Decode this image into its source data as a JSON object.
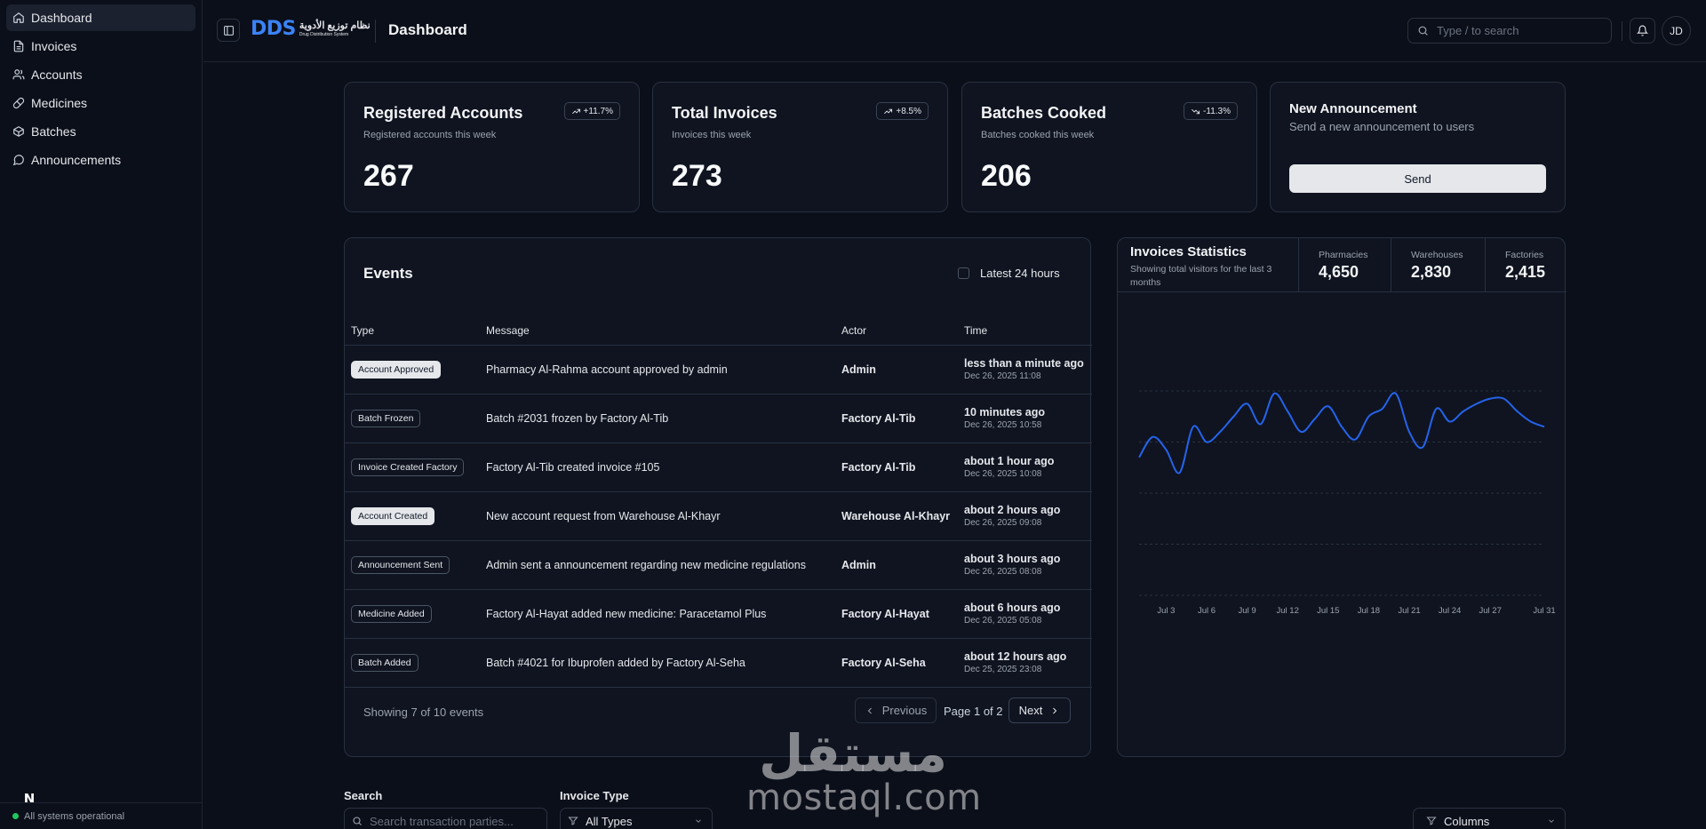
{
  "sidebar": {
    "items": [
      {
        "label": "Dashboard",
        "icon": "home-icon"
      },
      {
        "label": "Invoices",
        "icon": "file-icon"
      },
      {
        "label": "Accounts",
        "icon": "users-icon"
      },
      {
        "label": "Medicines",
        "icon": "pill-icon"
      },
      {
        "label": "Batches",
        "icon": "package-icon"
      },
      {
        "label": "Announcements",
        "icon": "message-icon"
      }
    ],
    "status": "All systems operational"
  },
  "header": {
    "brand": "DDS",
    "brand_ar": "نظام توزيع الأدوية",
    "brand_en": "Drug Distribution System",
    "title": "Dashboard",
    "search_placeholder": "Type / to search",
    "avatar": "JD"
  },
  "stats": [
    {
      "title": "Registered Accounts",
      "subtitle": "Registered accounts this week",
      "value": "267",
      "trend": "+11.7%",
      "trend_dir": "up"
    },
    {
      "title": "Total Invoices",
      "subtitle": "Invoices this week",
      "value": "273",
      "trend": "+8.5%",
      "trend_dir": "up"
    },
    {
      "title": "Batches Cooked",
      "subtitle": "Batches cooked this week",
      "value": "206",
      "trend": "-11.3%",
      "trend_dir": "down"
    }
  ],
  "announcement": {
    "title": "New Announcement",
    "subtitle": "Send a new announcement to users",
    "button": "Send"
  },
  "events": {
    "title": "Events",
    "filter_label": "Latest 24 hours",
    "columns": [
      "Type",
      "Message",
      "Actor",
      "Time"
    ],
    "rows": [
      {
        "type": "Account Approved",
        "style": "light",
        "message": "Pharmacy Al-Rahma account approved by admin",
        "actor": "Admin",
        "time": "less than a minute ago",
        "date": "Dec 26, 2025 11:08"
      },
      {
        "type": "Batch Frozen",
        "style": "outline",
        "message": "Batch #2031 frozen by Factory Al-Tib",
        "actor": "Factory Al-Tib",
        "time": "10 minutes ago",
        "date": "Dec 26, 2025 10:58"
      },
      {
        "type": "Invoice Created Factory",
        "style": "outline",
        "message": "Factory Al-Tib created invoice #105",
        "actor": "Factory Al-Tib",
        "time": "about 1 hour ago",
        "date": "Dec 26, 2025 10:08"
      },
      {
        "type": "Account Created",
        "style": "light",
        "message": "New account request from Warehouse Al-Khayr",
        "actor": "Warehouse Al-Khayr",
        "time": "about 2 hours ago",
        "date": "Dec 26, 2025 09:08"
      },
      {
        "type": "Announcement Sent",
        "style": "outline",
        "message": "Admin sent a announcement regarding new medicine regulations",
        "actor": "Admin",
        "time": "about 3 hours ago",
        "date": "Dec 26, 2025 08:08"
      },
      {
        "type": "Medicine Added",
        "style": "outline",
        "message": "Factory Al-Hayat added new medicine: Paracetamol Plus",
        "actor": "Factory Al-Hayat",
        "time": "about 6 hours ago",
        "date": "Dec 26, 2025 05:08"
      },
      {
        "type": "Batch Added",
        "style": "outline",
        "message": "Batch #4021 for Ibuprofen added by Factory Al-Seha",
        "actor": "Factory Al-Seha",
        "time": "about 12 hours ago",
        "date": "Dec 25, 2025 23:08"
      }
    ],
    "showing": "Showing 7 of 10 events",
    "prev": "Previous",
    "page": "Page 1 of 2",
    "next": "Next"
  },
  "invoice_stats": {
    "title": "Invoices Statistics",
    "subtitle": "Showing total visitors for the last 3 months",
    "columns": [
      {
        "label": "Pharmacies",
        "value": "4,650"
      },
      {
        "label": "Warehouses",
        "value": "2,830"
      },
      {
        "label": "Factories",
        "value": "2,415"
      }
    ]
  },
  "chart_data": {
    "type": "line",
    "title": "",
    "xlabel": "",
    "ylabel": "",
    "x_ticks": [
      "Jul 3",
      "Jul 6",
      "Jul 9",
      "Jul 12",
      "Jul 15",
      "Jul 18",
      "Jul 21",
      "Jul 24",
      "Jul 27",
      "Jul 31"
    ],
    "x": [
      1,
      2,
      3,
      4,
      5,
      6,
      7,
      8,
      9,
      10,
      11,
      12,
      13,
      14,
      15,
      16,
      17,
      18,
      19,
      20,
      21,
      22,
      23,
      24,
      25,
      26,
      27,
      28,
      29,
      30,
      31
    ],
    "ylim": [
      0,
      400
    ],
    "series": [
      {
        "values": [
          270,
          310,
          285,
          240,
          330,
          300,
          320,
          350,
          375,
          335,
          395,
          360,
          320,
          345,
          370,
          330,
          305,
          350,
          365,
          395,
          320,
          290,
          365,
          340,
          360,
          375,
          385,
          385,
          360,
          340,
          330
        ],
        "color": "#2563eb"
      }
    ],
    "grid": true,
    "legend": "none"
  },
  "filters": {
    "search_label": "Search",
    "search_placeholder": "Search transaction parties...",
    "type_label": "Invoice Type",
    "type_value": "All Types",
    "columns_button": "Columns"
  },
  "watermark": {
    "ar": "مستقل",
    "en": "mostaql.com"
  }
}
